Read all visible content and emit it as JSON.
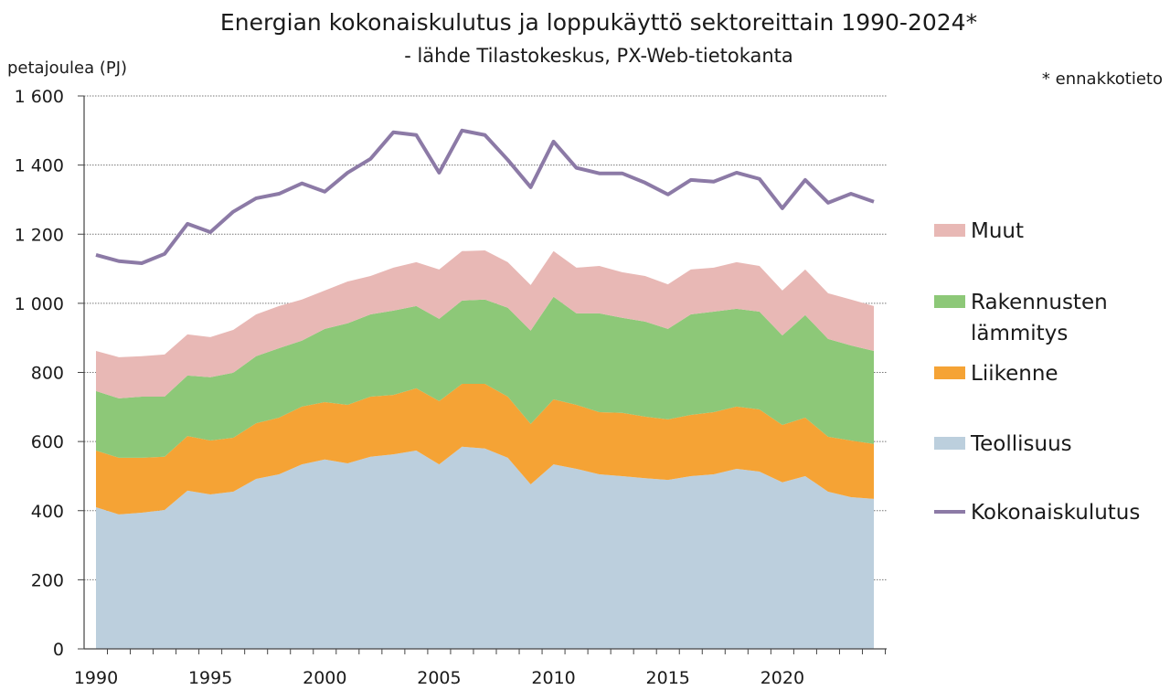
{
  "chart_data": {
    "type": "area",
    "stacked": true,
    "title": "Energian kokonaiskulutus ja loppukäyttö sektoreittain 1990-2024*",
    "subtitle": "- lähde Tilastokeskus, PX-Web-tietokanta",
    "ylabel": "petajoulea (PJ)",
    "note": "* ennakkotieto",
    "ylim": [
      0,
      1600
    ],
    "xlim": [
      1990,
      2024
    ],
    "yticks": [
      0,
      200,
      400,
      600,
      800,
      1000,
      1200,
      1400,
      1600
    ],
    "ytick_labels": [
      "0",
      "200",
      "400",
      "600",
      "800",
      "1 000",
      "1 200",
      "1 400",
      "1 600"
    ],
    "xtick_labels": [
      "1990",
      "1995",
      "2000",
      "2005",
      "2010",
      "2015",
      "2020"
    ],
    "grid": "horizontal dotted",
    "legend_position": "right",
    "x": [
      1990,
      1991,
      1992,
      1993,
      1994,
      1995,
      1996,
      1997,
      1998,
      1999,
      2000,
      2001,
      2002,
      2003,
      2004,
      2005,
      2006,
      2007,
      2008,
      2009,
      2010,
      2011,
      2012,
      2013,
      2014,
      2015,
      2016,
      2017,
      2018,
      2019,
      2020,
      2021,
      2022,
      2023,
      2024
    ],
    "series": [
      {
        "name": "Teollisuus",
        "kind": "area",
        "color": "#bccfdd",
        "values": [
          410,
          389,
          394,
          402,
          458,
          447,
          455,
          492,
          505,
          534,
          548,
          537,
          556,
          563,
          574,
          534,
          585,
          580,
          553,
          476,
          534,
          521,
          505,
          500,
          494,
          489,
          500,
          505,
          521,
          513,
          482,
          500,
          455,
          439,
          434
        ]
      },
      {
        "name": "Liikenne",
        "kind": "area",
        "color": "#f5a335",
        "values": [
          164,
          164,
          159,
          154,
          158,
          156,
          156,
          161,
          164,
          167,
          166,
          169,
          174,
          172,
          180,
          183,
          182,
          187,
          177,
          175,
          188,
          185,
          180,
          183,
          178,
          175,
          177,
          180,
          180,
          180,
          166,
          169,
          159,
          164,
          159
        ]
      },
      {
        "name": "Rakennusten lämmitys",
        "kind": "area",
        "color": "#8dc878",
        "values": [
          172,
          172,
          177,
          174,
          175,
          183,
          188,
          194,
          201,
          191,
          212,
          236,
          238,
          244,
          238,
          238,
          241,
          244,
          257,
          270,
          297,
          265,
          286,
          275,
          275,
          262,
          291,
          291,
          283,
          283,
          259,
          297,
          283,
          275,
          269
        ]
      },
      {
        "name": "Muut",
        "kind": "area",
        "color": "#e8b8b5",
        "values": [
          116,
          119,
          117,
          122,
          119,
          116,
          124,
          121,
          122,
          119,
          111,
          121,
          111,
          124,
          127,
          143,
          143,
          142,
          132,
          132,
          132,
          132,
          137,
          132,
          132,
          129,
          130,
          127,
          135,
          132,
          130,
          132,
          132,
          133,
          130
        ]
      },
      {
        "name": "Kokonaiskulutus",
        "kind": "line",
        "color": "#8c7aa6",
        "values": [
          1140,
          1122,
          1116,
          1143,
          1230,
          1206,
          1265,
          1304,
          1317,
          1347,
          1323,
          1378,
          1418,
          1495,
          1487,
          1378,
          1500,
          1487,
          1415,
          1336,
          1468,
          1392,
          1376,
          1376,
          1349,
          1315,
          1357,
          1352,
          1378,
          1360,
          1275,
          1357,
          1291,
          1317,
          1294
        ]
      }
    ],
    "legend": [
      {
        "lines": [
          "Muut"
        ],
        "series": 3
      },
      {
        "lines": [
          "Rakennusten",
          "lämmitys"
        ],
        "series": 2
      },
      {
        "lines": [
          "Liikenne"
        ],
        "series": 1
      },
      {
        "lines": [
          "Teollisuus"
        ],
        "series": 0
      },
      {
        "lines": [
          "Kokonaiskulutus"
        ],
        "series": 4
      }
    ]
  }
}
